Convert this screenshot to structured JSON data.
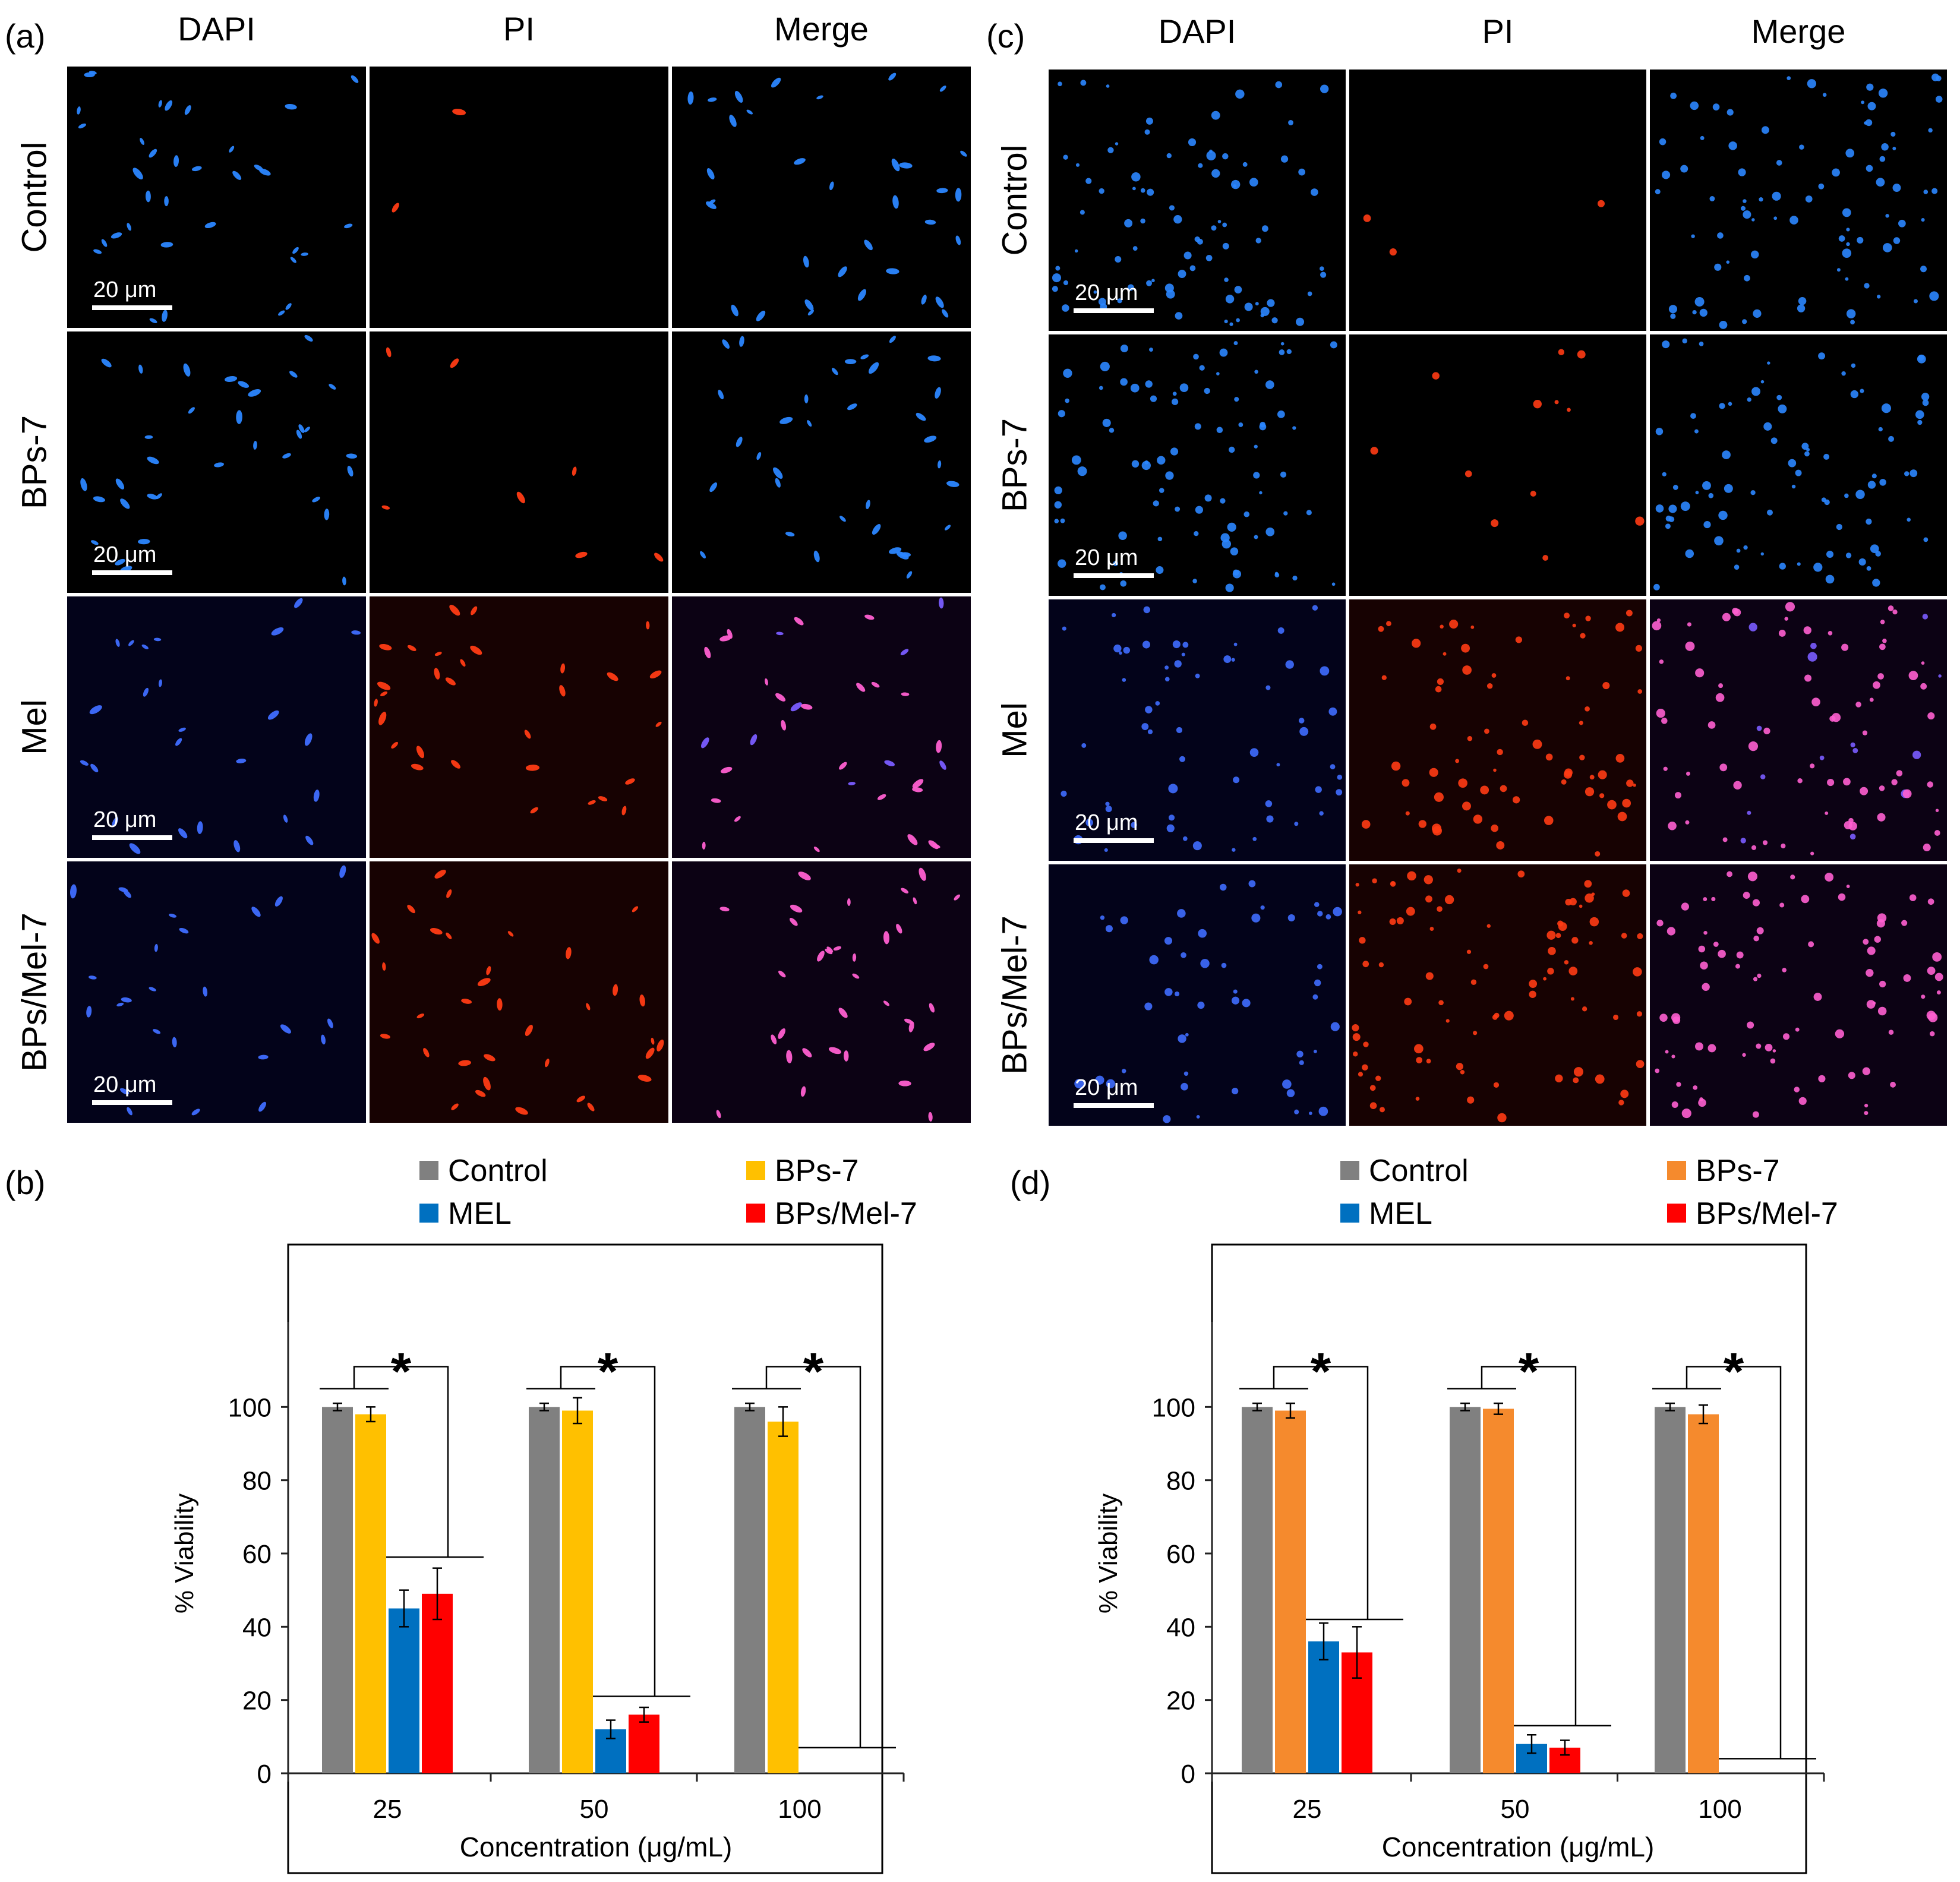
{
  "panel_letters": [
    "(a)",
    "(b)",
    "(c)",
    "(d)"
  ],
  "columns": [
    "DAPI",
    "PI",
    "Merge"
  ],
  "rows": [
    "Control",
    "BPs-7",
    "Mel",
    "BPs/Mel-7"
  ],
  "scale_bar_label": "20 μm",
  "significance_marker": "*",
  "colors": {
    "control": "#808080",
    "bps7_b": "#FFC000",
    "bps7_d": "#F58A2D",
    "mel": "#0070C0",
    "bpsmel": "#FF0000",
    "dapi": "#3f8bff",
    "pi": "#ff3b14"
  },
  "chart_data": [
    {
      "type": "bar",
      "panel": "(b)",
      "title": "",
      "xlabel": "Concentration (μg/mL)",
      "ylabel": "% Viability",
      "ylim": [
        0,
        120
      ],
      "yticks": [
        "0",
        "20",
        "40",
        "60",
        "80",
        "100"
      ],
      "categories": [
        "25",
        "50",
        "100"
      ],
      "legend": [
        "Control",
        "BPs-7",
        "MEL",
        "BPs/Mel-7"
      ],
      "legend_position": "top",
      "series": [
        {
          "name": "Control",
          "color": "#808080",
          "values": [
            100,
            100,
            100
          ],
          "errors": [
            1,
            1,
            1
          ]
        },
        {
          "name": "BPs-7",
          "color": "#FFC000",
          "values": [
            98,
            99,
            96
          ],
          "errors": [
            2,
            3.5,
            4
          ]
        },
        {
          "name": "MEL",
          "color": "#0070C0",
          "values": [
            45,
            12,
            0
          ],
          "errors": [
            5,
            2.5,
            0
          ]
        },
        {
          "name": "BPs/Mel-7",
          "color": "#FF0000",
          "values": [
            49,
            16,
            0
          ],
          "errors": [
            7,
            2,
            0
          ]
        }
      ],
      "significance_levels": [
        59,
        21,
        7
      ]
    },
    {
      "type": "bar",
      "panel": "(d)",
      "title": "",
      "xlabel": "Concentration (μg/mL)",
      "ylabel": "% Viability",
      "ylim": [
        0,
        120
      ],
      "yticks": [
        "0",
        "20",
        "40",
        "60",
        "80",
        "100"
      ],
      "categories": [
        "25",
        "50",
        "100"
      ],
      "legend": [
        "Control",
        "BPs-7",
        "MEL",
        "BPs/Mel-7"
      ],
      "legend_position": "top",
      "series": [
        {
          "name": "Control",
          "color": "#808080",
          "values": [
            100,
            100,
            100
          ],
          "errors": [
            1,
            1,
            1
          ]
        },
        {
          "name": "BPs-7",
          "color": "#F58A2D",
          "values": [
            99,
            99.5,
            98
          ],
          "errors": [
            2,
            1.5,
            2.5
          ]
        },
        {
          "name": "MEL",
          "color": "#0070C0",
          "values": [
            36,
            8,
            0
          ],
          "errors": [
            5,
            2.5,
            0
          ]
        },
        {
          "name": "BPs/Mel-7",
          "color": "#FF0000",
          "values": [
            33,
            7,
            0
          ],
          "errors": [
            7,
            2,
            0
          ]
        }
      ],
      "significance_levels": [
        42,
        13,
        4
      ]
    }
  ]
}
